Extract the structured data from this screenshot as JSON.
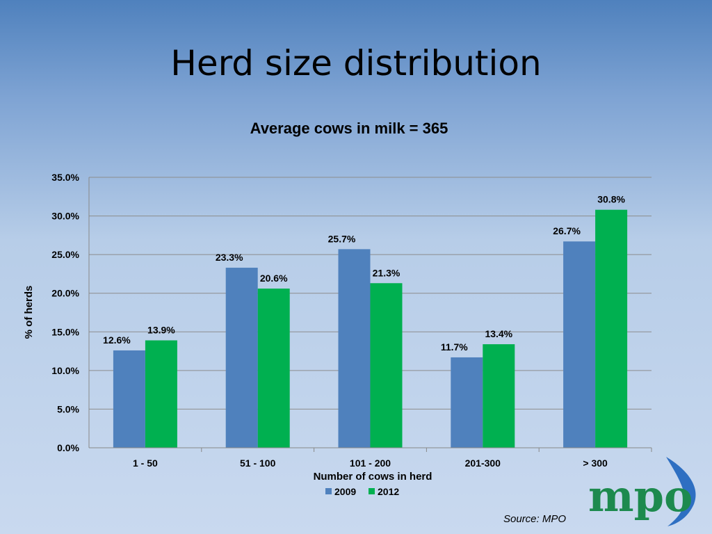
{
  "slide": {
    "title": "Herd size distribution",
    "source": "Source: MPO",
    "logo_text": "mpo"
  },
  "chart_data": {
    "type": "bar",
    "title": "Average cows in milk = 365",
    "xlabel": "Number of cows in herd",
    "ylabel": "% of herds",
    "categories": [
      "1 - 50",
      "51 - 100",
      "101 - 200",
      "201-300",
      "> 300"
    ],
    "series": [
      {
        "name": "2009",
        "values": [
          12.6,
          23.3,
          25.7,
          11.7,
          26.7
        ],
        "labels": [
          "12.6%",
          "23.3%",
          "25.7%",
          "11.7%",
          "26.7%"
        ],
        "color": "#4f81bd"
      },
      {
        "name": "2012",
        "values": [
          13.9,
          20.6,
          21.3,
          13.4,
          30.8
        ],
        "labels": [
          "13.9%",
          "20.6%",
          "21.3%",
          "13.4%",
          "30.8%"
        ],
        "color": "#00b050"
      }
    ],
    "ylim": [
      0,
      35
    ],
    "yticks": [
      "0.0%",
      "5.0%",
      "10.0%",
      "15.0%",
      "20.0%",
      "25.0%",
      "30.0%",
      "35.0%"
    ],
    "grid": true,
    "legend": "bottom"
  }
}
